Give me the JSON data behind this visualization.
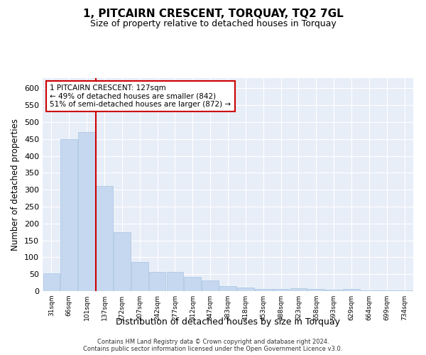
{
  "title": "1, PITCAIRN CRESCENT, TORQUAY, TQ2 7GL",
  "subtitle": "Size of property relative to detached houses in Torquay",
  "xlabel": "Distribution of detached houses by size in Torquay",
  "ylabel": "Number of detached properties",
  "categories": [
    "31sqm",
    "66sqm",
    "101sqm",
    "137sqm",
    "172sqm",
    "207sqm",
    "242sqm",
    "277sqm",
    "312sqm",
    "347sqm",
    "383sqm",
    "418sqm",
    "453sqm",
    "488sqm",
    "523sqm",
    "558sqm",
    "593sqm",
    "629sqm",
    "664sqm",
    "699sqm",
    "734sqm"
  ],
  "values": [
    53,
    450,
    470,
    310,
    175,
    87,
    57,
    57,
    43,
    31,
    15,
    10,
    6,
    6,
    8,
    6,
    5,
    7,
    2,
    3,
    3
  ],
  "bar_color": "#c5d8f0",
  "bar_edge_color": "#a8c4e0",
  "vline_color": "#cc0000",
  "vline_index": 2.5,
  "annotation_line1": "1 PITCAIRN CRESCENT: 127sqm",
  "annotation_line2": "← 49% of detached houses are smaller (842)",
  "annotation_line3": "51% of semi-detached houses are larger (872) →",
  "annotation_box_color": "#cc0000",
  "ylim": [
    0,
    630
  ],
  "yticks": [
    0,
    50,
    100,
    150,
    200,
    250,
    300,
    350,
    400,
    450,
    500,
    550,
    600
  ],
  "background_color": "#e8eef8",
  "grid_color": "#ffffff",
  "fig_bg_color": "#ffffff",
  "footer_line1": "Contains HM Land Registry data © Crown copyright and database right 2024.",
  "footer_line2": "Contains public sector information licensed under the Open Government Licence v3.0."
}
